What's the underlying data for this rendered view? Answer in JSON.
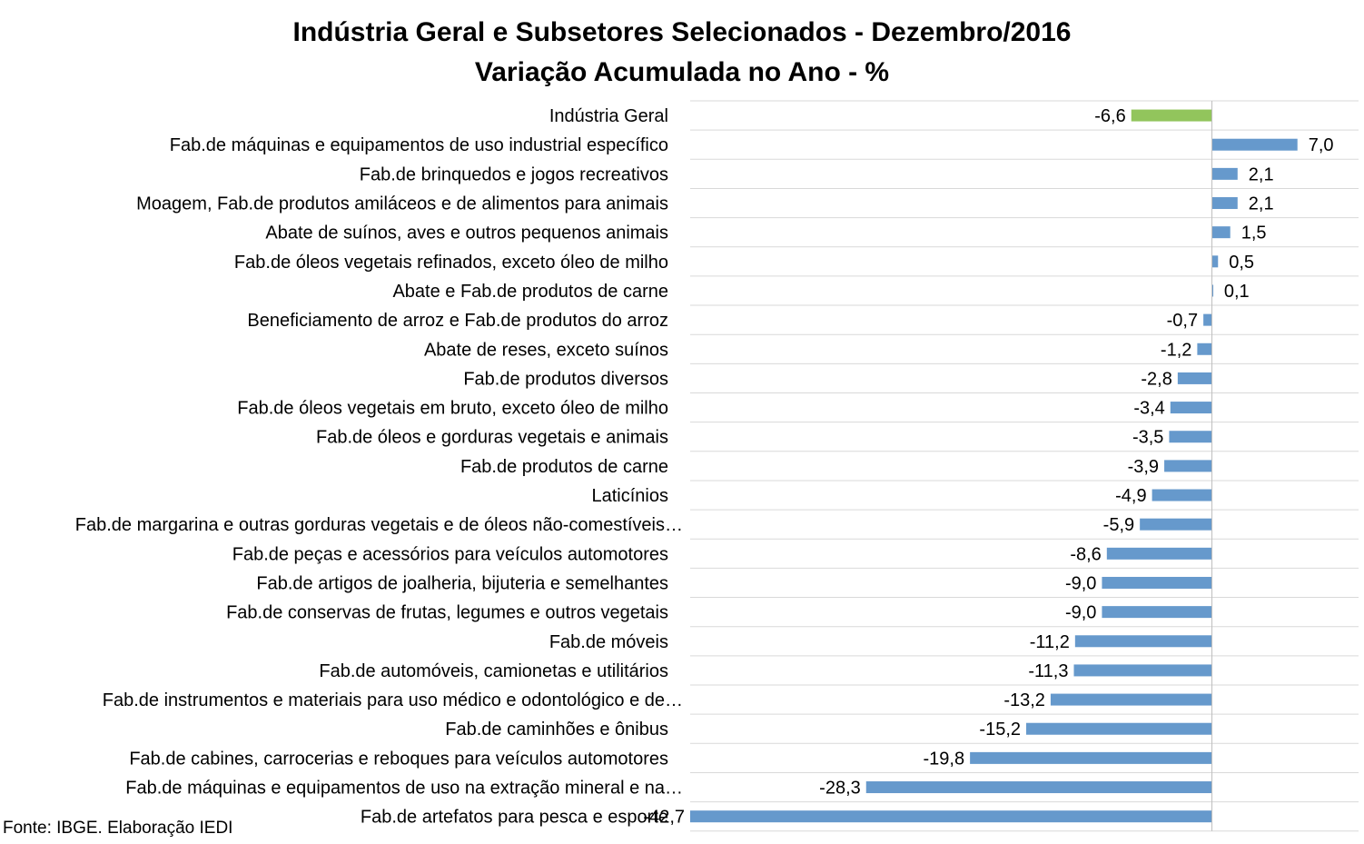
{
  "chart_data": {
    "type": "bar",
    "orientation": "horizontal",
    "title": "Indústria Geral e Subsetores Selecionados - Dezembro/2016",
    "subtitle": "Variação Acumulada no Ano - %",
    "source": "Fonte: IBGE. Elaboração IEDI",
    "xlim": [
      -42.7,
      12.0
    ],
    "grid": "horizontal",
    "legend": "none",
    "colors": {
      "highlight": "#92c55c",
      "bar": "#6699cc",
      "grid": "#d9d9d9",
      "axis": "#bfbfbf"
    },
    "categories": [
      "Indústria Geral",
      "Fab.de máquinas e equipamentos de uso industrial específico",
      "Fab.de brinquedos e jogos recreativos",
      "Moagem, Fab.de produtos amiláceos e de alimentos para animais",
      "Abate de suínos, aves e outros pequenos animais",
      "Fab.de óleos vegetais refinados, exceto óleo de milho",
      "Abate e Fab.de produtos de carne",
      "Beneficiamento de arroz e Fab.de produtos do arroz",
      "Abate de reses, exceto suínos",
      "Fab.de produtos diversos",
      "Fab.de óleos vegetais em bruto, exceto óleo de milho",
      "Fab.de óleos e gorduras vegetais e animais",
      "Fab.de produtos de carne",
      "Laticínios",
      "Fab.de margarina e outras gorduras vegetais e de óleos não-comestíveis…",
      "Fab.de peças e acessórios para veículos automotores",
      "Fab.de artigos de joalheria, bijuteria e semelhantes",
      "Fab.de conservas de frutas, legumes e outros vegetais",
      "Fab.de móveis",
      "Fab.de automóveis, camionetas e utilitários",
      "Fab.de instrumentos e materiais para uso médico e odontológico e de…",
      "Fab.de caminhões e ônibus",
      "Fab.de cabines, carrocerias e reboques para veículos automotores",
      "Fab.de máquinas e equipamentos de uso na extração mineral e na…",
      "Fab.de artefatos para pesca e esporte"
    ],
    "values": [
      -6.6,
      7.0,
      2.1,
      2.1,
      1.5,
      0.5,
      0.1,
      -0.7,
      -1.2,
      -2.8,
      -3.4,
      -3.5,
      -3.9,
      -4.9,
      -5.9,
      -8.6,
      -9.0,
      -9.0,
      -11.2,
      -11.3,
      -13.2,
      -15.2,
      -19.8,
      -28.3,
      -42.7
    ],
    "value_labels": [
      "-6,6",
      "7,0",
      "2,1",
      "2,1",
      "1,5",
      "0,5",
      "0,1",
      "-0,7",
      "-1,2",
      "-2,8",
      "-3,4",
      "-3,5",
      "-3,9",
      "-4,9",
      "-5,9",
      "-8,6",
      "-9,0",
      "-9,0",
      "-11,2",
      "-11,3",
      "-13,2",
      "-15,2",
      "-19,8",
      "-28,3",
      "-42,7"
    ],
    "highlight_index": 0
  }
}
